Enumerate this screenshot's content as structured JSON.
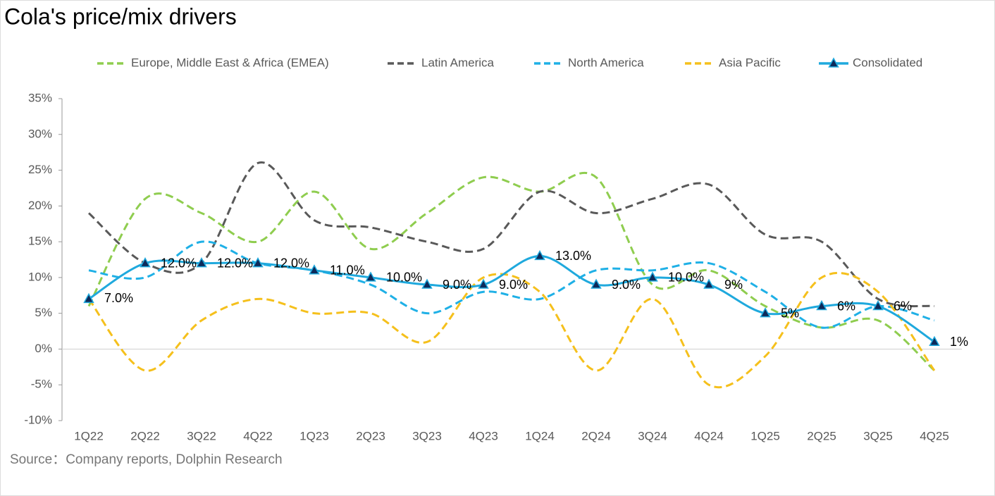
{
  "chart_data": {
    "type": "line",
    "title": "Cola's price/mix drivers",
    "source": "Source：Company reports, Dolphin Research",
    "categories": [
      "1Q22",
      "2Q22",
      "3Q22",
      "4Q22",
      "1Q23",
      "2Q23",
      "3Q23",
      "4Q23",
      "1Q24",
      "2Q24",
      "3Q24",
      "4Q24",
      "1Q25",
      "2Q25",
      "3Q25",
      "4Q25"
    ],
    "ylim": [
      -10,
      35
    ],
    "yticks": [
      {
        "value": -10,
        "label": "-10%"
      },
      {
        "value": -5,
        "label": "-5%"
      },
      {
        "value": 0,
        "label": "0%"
      },
      {
        "value": 5,
        "label": "5%"
      },
      {
        "value": 10,
        "label": "10%"
      },
      {
        "value": 15,
        "label": "15%"
      },
      {
        "value": 20,
        "label": "20%"
      },
      {
        "value": 25,
        "label": "25%"
      },
      {
        "value": 30,
        "label": "30%"
      },
      {
        "value": 35,
        "label": "35%"
      }
    ],
    "smooth": true,
    "series": [
      {
        "name": "Europe, Middle East & Africa (EMEA)",
        "color": "#8fcd4f",
        "dashed": true,
        "values": [
          6,
          21,
          19,
          15,
          22,
          14,
          19,
          24,
          22,
          24,
          9,
          11,
          6,
          3,
          4,
          -3
        ]
      },
      {
        "name": "Latin America",
        "color": "#595959",
        "dashed": true,
        "values": [
          19,
          12,
          12,
          26,
          18,
          17,
          15,
          14,
          22,
          19,
          21,
          23,
          16,
          15,
          7,
          6
        ]
      },
      {
        "name": "North America",
        "color": "#1fb0e6",
        "dashed": true,
        "values": [
          11,
          10,
          15,
          12,
          11,
          9,
          5,
          8,
          7,
          11,
          11,
          12,
          8,
          3,
          6,
          4
        ]
      },
      {
        "name": "Asia Pacific",
        "color": "#f5c01c",
        "dashed": true,
        "values": [
          7,
          -3,
          4,
          7,
          5,
          5,
          1,
          10,
          8,
          -3,
          7,
          -5,
          -1,
          10,
          8,
          -3
        ]
      },
      {
        "name": "Consolidated",
        "color": "#1fa9dd",
        "dashed": false,
        "marker": "triangle",
        "marker_color": "#0d2a5a",
        "values": [
          7,
          12,
          12,
          12,
          11,
          10,
          9,
          9,
          13,
          9,
          10,
          9,
          5,
          6,
          6,
          1
        ],
        "value_labels": [
          "7.0%",
          "12.0%",
          "12.0%",
          "12.0%",
          "11.0%",
          "10.0%",
          "9.0%",
          "9.0%",
          "13.0%",
          "9.0%",
          "10.0%",
          "9%",
          "5%",
          "6%",
          "6%",
          "1%"
        ]
      }
    ]
  }
}
